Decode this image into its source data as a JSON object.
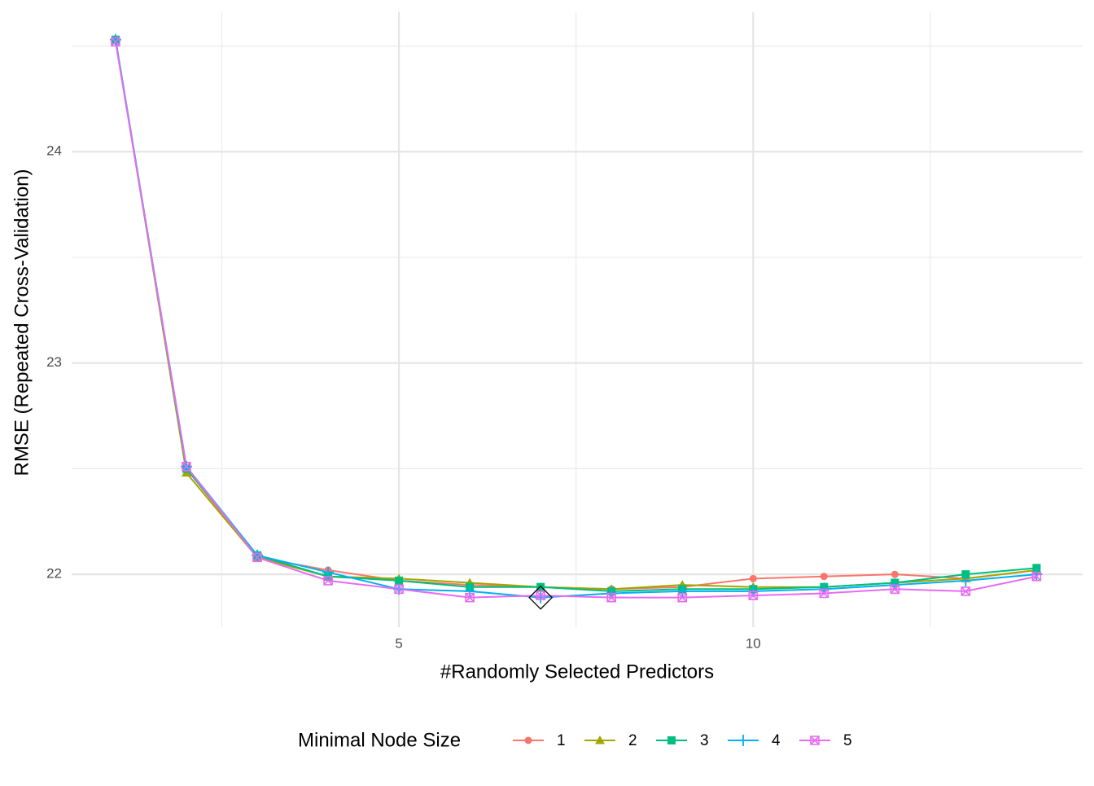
{
  "chart_data": {
    "type": "line",
    "x_label": "#Randomly Selected Predictors",
    "y_label": "RMSE (Repeated Cross-Validation)",
    "legend_title": "Minimal Node Size",
    "legend_position": "bottom",
    "x": [
      1,
      2,
      3,
      4,
      5,
      6,
      7,
      8,
      9,
      10,
      11,
      12,
      13,
      14
    ],
    "series": [
      {
        "name": "1",
        "color": "#F8766D",
        "marker": "circle",
        "values": [
          24.53,
          22.5,
          22.08,
          22.02,
          21.97,
          21.95,
          21.94,
          21.93,
          21.94,
          21.98,
          21.99,
          22.0,
          21.98,
          22.02
        ]
      },
      {
        "name": "2",
        "color": "#A3A500",
        "marker": "triangle",
        "values": [
          24.53,
          22.48,
          22.08,
          21.99,
          21.98,
          21.96,
          21.94,
          21.93,
          21.95,
          21.94,
          21.94,
          21.96,
          21.98,
          22.02
        ]
      },
      {
        "name": "3",
        "color": "#00BF7D",
        "marker": "square",
        "values": [
          24.53,
          22.5,
          22.09,
          21.99,
          21.97,
          21.94,
          21.94,
          21.92,
          21.93,
          21.93,
          21.94,
          21.96,
          22.0,
          22.03
        ]
      },
      {
        "name": "4",
        "color": "#00B0F6",
        "marker": "plus",
        "values": [
          24.53,
          22.51,
          22.09,
          22.01,
          21.93,
          21.92,
          21.89,
          21.91,
          21.92,
          21.92,
          21.93,
          21.95,
          21.97,
          22.0
        ]
      },
      {
        "name": "5",
        "color": "#E76BF3",
        "marker": "square-cross",
        "values": [
          24.52,
          22.51,
          22.08,
          21.97,
          21.93,
          21.89,
          21.9,
          21.89,
          21.89,
          21.9,
          21.91,
          21.93,
          21.92,
          21.99
        ]
      }
    ],
    "best": {
      "x": 7,
      "y": 21.89
    },
    "xlim": [
      0.38,
      14.65
    ],
    "ylim": [
      21.75,
      24.66
    ],
    "xticks": [
      5,
      10
    ],
    "yticks": [
      22,
      23,
      24
    ],
    "xminor": [
      2.5,
      7.5,
      12.5
    ],
    "yminor": [
      22.5,
      23.5,
      24.5
    ],
    "grid": true
  }
}
